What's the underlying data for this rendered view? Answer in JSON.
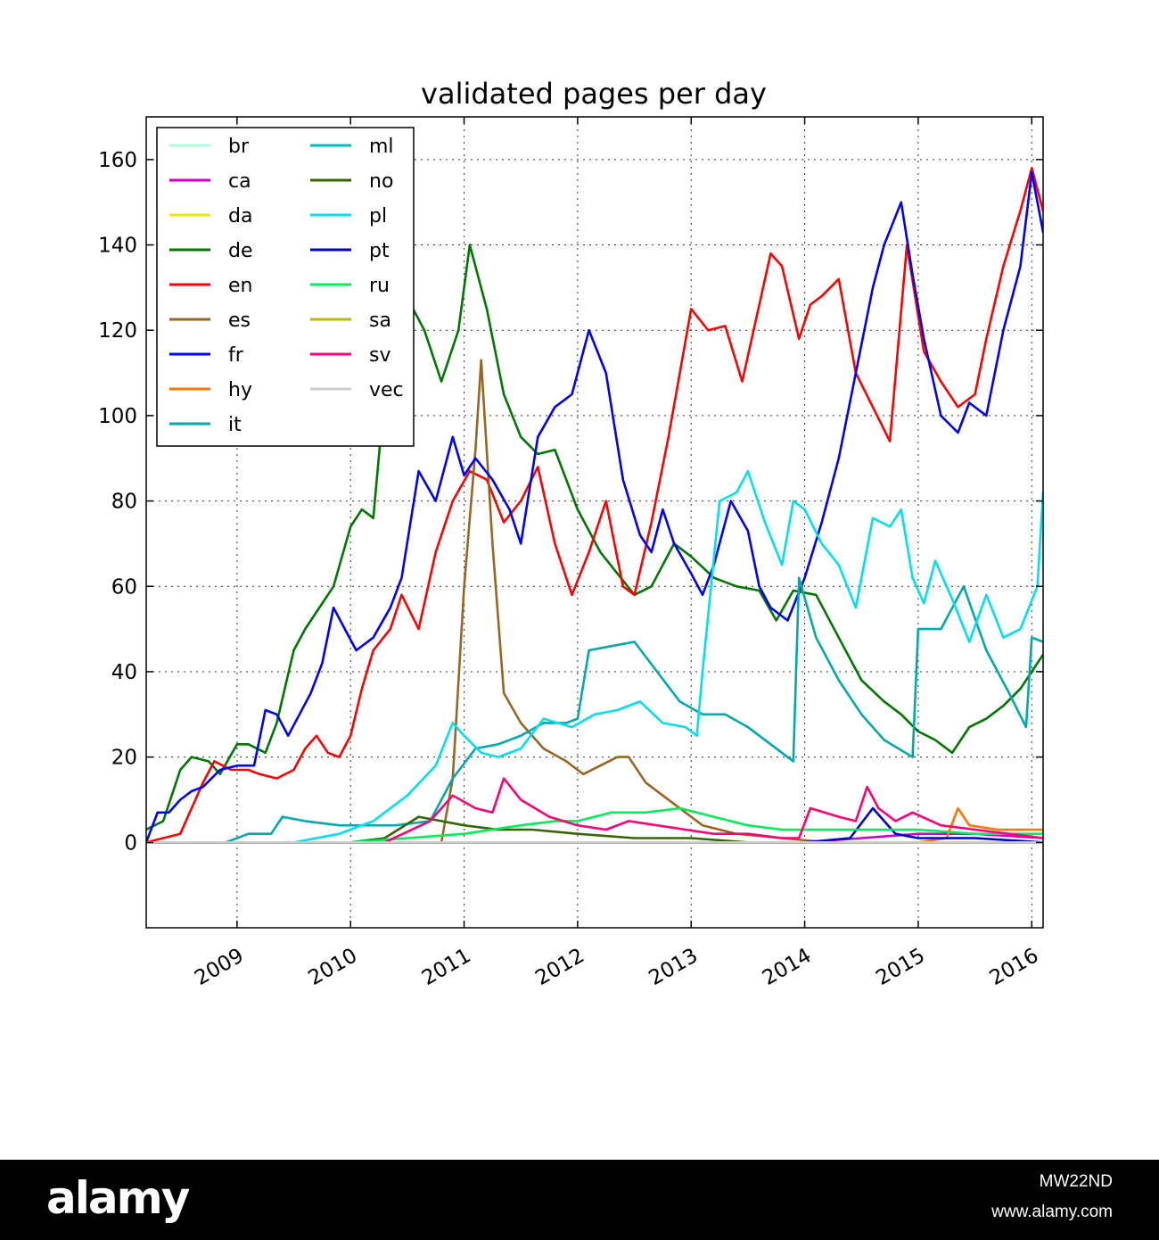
{
  "chart_data": {
    "type": "line",
    "title": "validated pages per day",
    "xlabel": "",
    "ylabel": "",
    "xlim": [
      2008.2,
      2016.1
    ],
    "ylim": [
      -20,
      170
    ],
    "yticks": [
      0,
      20,
      40,
      60,
      80,
      100,
      120,
      140,
      160
    ],
    "xticks": [
      2009,
      2010,
      2011,
      2012,
      2013,
      2014,
      2015,
      2016
    ],
    "grid": true,
    "legend_position": "top-left",
    "legend_columns": 2,
    "series": [
      {
        "name": "br",
        "color": "#aaffdd",
        "x": [
          2008.2,
          2016.1
        ],
        "y": [
          0,
          0
        ]
      },
      {
        "name": "ca",
        "color": "#cc00cc",
        "x": [
          2008.2,
          2014.0,
          2014.5,
          2015.0,
          2015.5,
          2016.1
        ],
        "y": [
          0,
          0,
          1,
          2,
          2,
          1
        ]
      },
      {
        "name": "da",
        "color": "#e8e800",
        "x": [
          2008.2,
          2016.1
        ],
        "y": [
          0,
          0
        ]
      },
      {
        "name": "de",
        "color": "#007700",
        "x": [
          2008.2,
          2008.35,
          2008.5,
          2008.6,
          2008.75,
          2008.85,
          2009.0,
          2009.1,
          2009.25,
          2009.35,
          2009.5,
          2009.6,
          2009.75,
          2009.85,
          2010.0,
          2010.1,
          2010.2,
          2010.35,
          2010.45,
          2010.55,
          2010.65,
          2010.8,
          2010.95,
          2011.05,
          2011.2,
          2011.35,
          2011.5,
          2011.65,
          2011.8,
          2012.0,
          2012.2,
          2012.35,
          2012.5,
          2012.65,
          2012.85,
          2013.0,
          2013.2,
          2013.4,
          2013.6,
          2013.75,
          2013.9,
          2014.1,
          2014.3,
          2014.5,
          2014.7,
          2014.85,
          2015.0,
          2015.15,
          2015.3,
          2015.45,
          2015.6,
          2015.75,
          2015.9,
          2016.1
        ],
        "y": [
          3,
          5,
          17,
          20,
          19,
          16,
          23,
          23,
          21,
          28,
          45,
          50,
          56,
          60,
          74,
          78,
          76,
          120,
          118,
          125,
          120,
          108,
          120,
          140,
          125,
          105,
          95,
          91,
          92,
          78,
          68,
          63,
          58,
          60,
          70,
          67,
          62,
          60,
          59,
          52,
          59,
          58,
          48,
          38,
          33,
          30,
          26,
          24,
          21,
          27,
          29,
          32,
          36,
          44
        ]
      },
      {
        "name": "en",
        "color": "#ff0000",
        "x": [
          2008.2,
          2008.5,
          2008.6,
          2008.7,
          2008.8,
          2008.95,
          2009.1,
          2009.2,
          2009.35,
          2009.5,
          2009.6,
          2009.7,
          2009.8,
          2009.9,
          2010.0,
          2010.1,
          2010.2,
          2010.35,
          2010.45,
          2010.6,
          2010.75,
          2010.9,
          2011.05,
          2011.2,
          2011.35,
          2011.5,
          2011.65,
          2011.8,
          2011.95,
          2012.1,
          2012.25,
          2012.4,
          2012.5,
          2012.65,
          2012.8,
          2012.9,
          2013.0,
          2013.15,
          2013.3,
          2013.45,
          2013.55,
          2013.7,
          2013.8,
          2013.95,
          2014.05,
          2014.15,
          2014.3,
          2014.45,
          2014.6,
          2014.75,
          2014.9,
          2015.05,
          2015.2,
          2015.35,
          2015.5,
          2015.6,
          2015.75,
          2015.9,
          2016.0,
          2016.1
        ],
        "y": [
          0,
          2,
          8,
          14,
          19,
          17,
          17,
          16,
          15,
          17,
          22,
          25,
          21,
          20,
          25,
          36,
          45,
          50,
          58,
          50,
          68,
          80,
          87,
          85,
          75,
          80,
          88,
          70,
          58,
          68,
          80,
          60,
          58,
          75,
          95,
          110,
          125,
          120,
          121,
          108,
          120,
          138,
          135,
          118,
          126,
          128,
          132,
          110,
          102,
          94,
          140,
          115,
          108,
          102,
          105,
          118,
          135,
          148,
          158,
          148
        ]
      },
      {
        "name": "es",
        "color": "#996622",
        "x": [
          2008.2,
          2010.8,
          2010.9,
          2011.0,
          2011.1,
          2011.15,
          2011.25,
          2011.35,
          2011.5,
          2011.7,
          2011.9,
          2012.05,
          2012.2,
          2012.35,
          2012.45,
          2012.6,
          2012.75,
          2012.9,
          2013.1,
          2013.4,
          2013.8,
          2014.2,
          2016.1
        ],
        "y": [
          0,
          0,
          15,
          60,
          92,
          113,
          70,
          35,
          28,
          22,
          19,
          16,
          18,
          20,
          20,
          14,
          11,
          8,
          4,
          2,
          1,
          0,
          0
        ]
      },
      {
        "name": "fr",
        "color": "#0000ff",
        "x": [
          2008.2,
          2008.3,
          2008.4,
          2008.5,
          2008.6,
          2008.7,
          2008.85,
          2009.0,
          2009.15,
          2009.25,
          2009.35,
          2009.45,
          2009.55,
          2009.65,
          2009.75,
          2009.85,
          2009.95,
          2010.05,
          2010.2,
          2010.35,
          2010.45,
          2010.6,
          2010.75,
          2010.9,
          2011.0,
          2011.1,
          2011.25,
          2011.4,
          2011.5,
          2011.65,
          2011.8,
          2011.95,
          2012.1,
          2012.25,
          2012.4,
          2012.55,
          2012.65,
          2012.75,
          2012.85,
          2013.0,
          2013.1,
          2013.2,
          2013.35,
          2013.5,
          2013.6,
          2013.7,
          2013.85,
          2014.0,
          2014.15,
          2014.3,
          2014.45,
          2014.6,
          2014.7,
          2014.85,
          2014.95,
          2015.05,
          2015.2,
          2015.35,
          2015.45,
          2015.6,
          2015.75,
          2015.9,
          2016.0,
          2016.1
        ],
        "y": [
          0,
          7,
          7,
          10,
          12,
          13,
          17,
          18,
          18,
          31,
          30,
          25,
          30,
          35,
          42,
          55,
          50,
          45,
          48,
          55,
          62,
          87,
          80,
          95,
          86,
          90,
          85,
          78,
          70,
          95,
          102,
          105,
          120,
          110,
          85,
          72,
          68,
          78,
          70,
          63,
          58,
          65,
          80,
          73,
          60,
          55,
          52,
          62,
          75,
          90,
          110,
          130,
          140,
          150,
          133,
          118,
          100,
          96,
          103,
          100,
          120,
          135,
          157,
          143
        ]
      },
      {
        "name": "hy",
        "color": "#ff7700",
        "x": [
          2008.2,
          2015.0,
          2015.25,
          2015.35,
          2015.45,
          2015.7,
          2016.1
        ],
        "y": [
          0,
          0,
          1,
          8,
          4,
          3,
          3
        ]
      },
      {
        "name": "it",
        "color": "#00aaaa",
        "x": [
          2008.2,
          2008.9,
          2009.1,
          2009.3,
          2009.4,
          2009.6,
          2009.9,
          2010.4,
          2010.7,
          2010.9,
          2011.1,
          2011.3,
          2011.5,
          2011.7,
          2011.9,
          2012.0,
          2012.1,
          2012.3,
          2012.5,
          2012.7,
          2012.9,
          2013.1,
          2013.3,
          2013.5,
          2013.7,
          2013.9,
          2013.95,
          2014.1,
          2014.3,
          2014.5,
          2014.7,
          2014.95,
          2015.0,
          2015.2,
          2015.4,
          2015.6,
          2015.8,
          2015.95,
          2016.0,
          2016.1
        ],
        "y": [
          0,
          0,
          2,
          2,
          6,
          5,
          4,
          4,
          5,
          15,
          22,
          23,
          25,
          28,
          28,
          29,
          45,
          46,
          47,
          40,
          33,
          30,
          30,
          27,
          23,
          19,
          62,
          48,
          38,
          30,
          24,
          20,
          50,
          50,
          60,
          45,
          35,
          27,
          48,
          47
        ]
      },
      {
        "name": "ml",
        "color": "#00bbbb",
        "x": [
          2008.2,
          2016.1
        ],
        "y": [
          0,
          0
        ]
      },
      {
        "name": "no",
        "color": "#336600",
        "x": [
          2008.2,
          2010.0,
          2010.3,
          2010.6,
          2010.8,
          2011.0,
          2011.3,
          2011.6,
          2012.0,
          2012.5,
          2013.0,
          2013.5,
          2016.1
        ],
        "y": [
          0,
          0,
          1,
          6,
          5,
          4,
          3,
          3,
          2,
          1,
          1,
          0,
          0
        ]
      },
      {
        "name": "pl",
        "color": "#00e0f0",
        "x": [
          2008.2,
          2009.5,
          2009.9,
          2010.2,
          2010.5,
          2010.75,
          2010.9,
          2011.0,
          2011.15,
          2011.3,
          2011.5,
          2011.7,
          2011.95,
          2012.15,
          2012.35,
          2012.55,
          2012.75,
          2012.95,
          2013.05,
          2013.1,
          2013.25,
          2013.4,
          2013.5,
          2013.65,
          2013.8,
          2013.9,
          2014.0,
          2014.15,
          2014.3,
          2014.45,
          2014.6,
          2014.75,
          2014.85,
          2014.95,
          2015.05,
          2015.15,
          2015.3,
          2015.45,
          2015.6,
          2015.75,
          2015.9,
          2016.05,
          2016.1
        ],
        "y": [
          0,
          0,
          2,
          5,
          11,
          18,
          28,
          25,
          21,
          20,
          22,
          29,
          27,
          30,
          31,
          33,
          28,
          27,
          25,
          40,
          80,
          82,
          87,
          75,
          65,
          80,
          78,
          70,
          65,
          55,
          76,
          74,
          78,
          62,
          56,
          66,
          57,
          47,
          58,
          48,
          50,
          60,
          82
        ]
      },
      {
        "name": "pt",
        "color": "#0000cc",
        "x": [
          2008.2,
          2014.0,
          2014.4,
          2014.6,
          2014.8,
          2015.0,
          2015.5,
          2016.1
        ],
        "y": [
          0,
          0,
          1,
          8,
          2,
          1,
          1,
          0
        ]
      },
      {
        "name": "ru",
        "color": "#00ee55",
        "x": [
          2008.2,
          2010.0,
          2010.5,
          2011.0,
          2011.5,
          2011.8,
          2012.0,
          2012.3,
          2012.6,
          2012.9,
          2013.2,
          2013.5,
          2013.8,
          2014.2,
          2014.6,
          2015.0,
          2015.5,
          2016.1
        ],
        "y": [
          0,
          0,
          1,
          2,
          4,
          5,
          5,
          7,
          7,
          8,
          6,
          4,
          3,
          3,
          3,
          3,
          2,
          2
        ]
      },
      {
        "name": "sa",
        "color": "#bbbb00",
        "x": [
          2008.2,
          2016.1
        ],
        "y": [
          0,
          0
        ]
      },
      {
        "name": "sv",
        "color": "#ff0077",
        "x": [
          2008.2,
          2010.3,
          2010.7,
          2010.9,
          2011.1,
          2011.25,
          2011.35,
          2011.5,
          2011.75,
          2012.0,
          2012.25,
          2012.45,
          2012.7,
          2012.95,
          2013.2,
          2013.5,
          2013.8,
          2013.95,
          2014.05,
          2014.3,
          2014.45,
          2014.55,
          2014.65,
          2014.8,
          2014.95,
          2015.2,
          2015.5,
          2015.8,
          2016.1
        ],
        "y": [
          0,
          0,
          5,
          11,
          8,
          7,
          15,
          10,
          6,
          4,
          3,
          5,
          4,
          3,
          2,
          2,
          1,
          1,
          8,
          6,
          5,
          13,
          8,
          5,
          7,
          4,
          3,
          2,
          1
        ]
      },
      {
        "name": "vec",
        "color": "#cccccc",
        "x": [
          2008.2,
          2016.1
        ],
        "y": [
          0,
          0
        ]
      }
    ]
  },
  "footer": {
    "brand": "alamy",
    "image_id": "MW22ND",
    "url": "www.alamy.com"
  }
}
